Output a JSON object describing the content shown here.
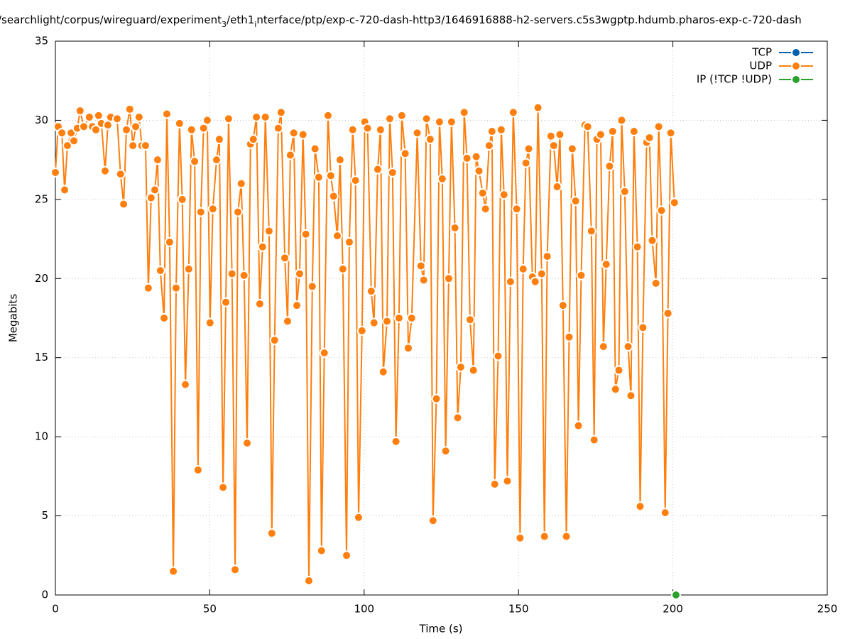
{
  "chart_data": {
    "type": "line",
    "title_parts": [
      "/searchlight/corpus/wireguard/experiment",
      "3",
      "/eth1",
      "i",
      "nterface/ptp/exp-c-720-dash-http3/1646916888-h2-servers.c5s3wgptp.hdumb.pharos-exp-c-720-dash"
    ],
    "x_label": "Time (s)",
    "y_label": "Megabits",
    "xlim": [
      0,
      250
    ],
    "xticks": [
      0,
      50,
      100,
      150,
      200,
      250
    ],
    "ylim": [
      0,
      35
    ],
    "yticks": [
      0,
      5,
      10,
      15,
      20,
      25,
      30,
      35
    ],
    "grid": true,
    "legend": "top-right",
    "series": [
      {
        "name": "TCP",
        "color": "#0060ad",
        "x": [],
        "values": []
      },
      {
        "name": "UDP",
        "color": "#ff7f0e",
        "x": [
          0,
          0.9,
          2.1,
          3,
          3.9,
          5.1,
          6,
          7.1,
          8,
          9.2,
          11,
          12,
          13.1,
          14,
          14.9,
          16.1,
          17,
          17.9,
          20,
          21.1,
          22.1,
          23,
          24.1,
          25.1,
          26,
          27.1,
          28,
          29.2,
          30.1,
          31,
          32.2,
          33.1,
          34,
          35.2,
          36.1,
          37,
          38.2,
          39.1,
          40.2,
          41.1,
          42.1,
          43.2,
          44.1,
          45.1,
          46.2,
          47.1,
          48,
          49.2,
          50.1,
          51,
          52.2,
          53.1,
          54.3,
          55.2,
          56.1,
          57.2,
          58.2,
          59.1,
          60.2,
          61.1,
          62.1,
          63.2,
          64.1,
          65.1,
          66.2,
          67.1,
          68,
          69.2,
          70.1,
          71,
          72.2,
          73.1,
          74.3,
          75.2,
          76.1,
          77.2,
          78.2,
          79.1,
          80.2,
          81.1,
          82.1,
          83.2,
          84.1,
          85.3,
          86.2,
          87.1,
          88.3,
          89.2,
          90.1,
          91.3,
          92.2,
          93.1,
          94.3,
          95.2,
          96.3,
          97.2,
          98.2,
          99.3,
          100.2,
          101.1,
          102.3,
          103.2,
          104.4,
          105.3,
          106.2,
          107.4,
          108.3,
          109.2,
          110.3,
          111.3,
          112.2,
          113.3,
          114.3,
          115.4,
          117.2,
          118.4,
          119.3,
          120.2,
          121.4,
          122.3,
          123.4,
          124.4,
          125.3,
          126.4,
          127.4,
          128.3,
          129.4,
          130.3,
          131.3,
          132.4,
          133.3,
          134.3,
          135.4,
          136.3,
          137.2,
          138.4,
          139.3,
          140.5,
          141.4,
          142.3,
          143.4,
          144.4,
          145.3,
          146.4,
          147.4,
          148.3,
          149.4,
          150.5,
          151.5,
          152.4,
          153.3,
          154.5,
          155.4,
          156.3,
          157.5,
          158.4,
          159.3,
          160.5,
          161.4,
          162.5,
          163.4,
          164.4,
          165.5,
          166.4,
          167.4,
          168.5,
          169.4,
          170.3,
          171.5,
          172.4,
          173.6,
          174.5,
          175.4,
          176.6,
          177.5,
          178.4,
          179.5,
          180.5,
          181.4,
          182.5,
          183.4,
          184.4,
          185.5,
          186.4,
          187.4,
          188.5,
          189.4,
          190.3,
          191.5,
          192.4,
          193.3,
          194.5,
          195.4,
          196.3,
          197.5,
          198.4,
          199.3,
          200.5
        ],
        "values": [
          26.7,
          29.6,
          29.2,
          25.6,
          28.4,
          29.2,
          28.7,
          29.5,
          30.6,
          29.6,
          30.2,
          29.6,
          29.4,
          30.3,
          29.8,
          26.8,
          29.7,
          30.2,
          30.1,
          26.6,
          24.7,
          29.4,
          30.7,
          28.4,
          29.6,
          30.2,
          28.4,
          28.4,
          19.4,
          25.1,
          25.6,
          27.5,
          20.5,
          17.5,
          30.4,
          22.3,
          1.5,
          19.4,
          29.8,
          25.0,
          13.3,
          20.6,
          29.4,
          27.4,
          7.9,
          24.2,
          29.5,
          30.0,
          17.2,
          24.4,
          27.5,
          28.8,
          6.8,
          18.5,
          30.1,
          20.3,
          1.6,
          24.2,
          26.0,
          20.2,
          9.6,
          28.5,
          28.8,
          30.2,
          18.4,
          22.0,
          30.2,
          23.0,
          3.9,
          16.1,
          29.5,
          30.5,
          21.3,
          17.3,
          27.8,
          29.2,
          18.3,
          20.3,
          29.1,
          22.8,
          0.9,
          19.5,
          28.2,
          26.4,
          2.8,
          15.3,
          30.3,
          26.5,
          25.2,
          22.7,
          27.5,
          20.6,
          2.5,
          22.3,
          29.4,
          26.2,
          4.9,
          16.7,
          29.9,
          29.5,
          19.2,
          17.2,
          26.9,
          29.4,
          14.1,
          17.3,
          30.1,
          26.7,
          9.7,
          17.5,
          30.3,
          27.9,
          15.6,
          17.5,
          29.2,
          20.8,
          19.9,
          30.1,
          28.8,
          4.7,
          12.4,
          29.9,
          26.3,
          9.1,
          20.0,
          29.9,
          23.2,
          11.2,
          14.4,
          30.5,
          27.6,
          17.4,
          14.2,
          27.7,
          26.8,
          25.4,
          24.4,
          28.4,
          29.3,
          7.0,
          15.1,
          29.4,
          25.3,
          7.2,
          19.8,
          30.5,
          24.4,
          3.6,
          20.6,
          27.3,
          28.2,
          20.1,
          19.8,
          30.8,
          20.3,
          3.7,
          21.4,
          29.0,
          28.4,
          25.8,
          29.1,
          18.3,
          3.7,
          16.3,
          28.2,
          24.9,
          10.7,
          20.2,
          29.7,
          29.6,
          23.0,
          9.8,
          28.8,
          29.1,
          15.7,
          20.9,
          27.1,
          29.3,
          13.0,
          14.2,
          30.0,
          25.5,
          15.7,
          12.6,
          29.3,
          22.0,
          5.6,
          16.9,
          28.6,
          28.9,
          22.4,
          19.7,
          29.6,
          24.3,
          5.2,
          17.8,
          29.2,
          24.8
        ]
      },
      {
        "name": "IP (!TCP  !UDP)",
        "color": "#2ca02c",
        "x": [
          201
        ],
        "values": [
          0
        ]
      }
    ]
  }
}
